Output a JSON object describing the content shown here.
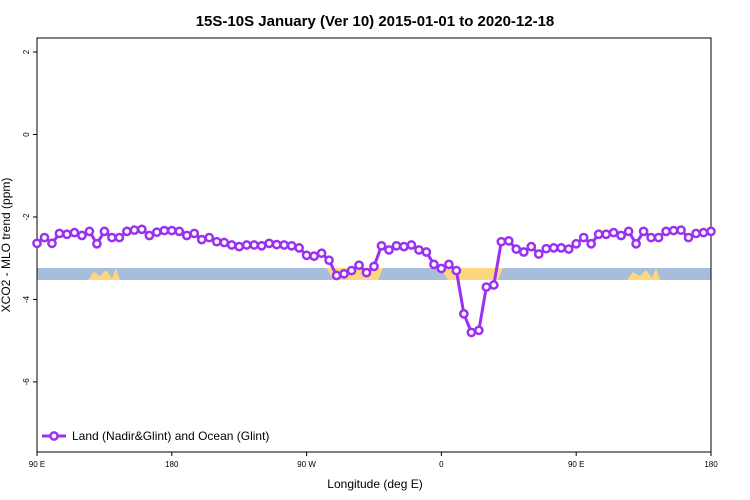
{
  "chart_data": {
    "type": "line",
    "title": "15S-10S January (Ver 10)   2015-01-01 to 2020-12-18",
    "x_label": "Longitude (deg E)",
    "y_label": "XCO2 - MLO trend (ppm)",
    "x": [
      90,
      95,
      100,
      105,
      110,
      115,
      120,
      125,
      130,
      135,
      140,
      145,
      150,
      155,
      160,
      165,
      170,
      175,
      180,
      185,
      190,
      195,
      200,
      205,
      210,
      215,
      220,
      225,
      230,
      235,
      240,
      245,
      250,
      255,
      260,
      265,
      270,
      275,
      280,
      285,
      290,
      295,
      300,
      305,
      310,
      315,
      320,
      325,
      330,
      335,
      340,
      345,
      350,
      355,
      360,
      365,
      370,
      375,
      380,
      385,
      390,
      395,
      400,
      405,
      410,
      415,
      420,
      425,
      430,
      435,
      440,
      445,
      450,
      455,
      460,
      465,
      470,
      475,
      480,
      485,
      490,
      495,
      500,
      505,
      510,
      515,
      520,
      525,
      530,
      535,
      540
    ],
    "series": [
      {
        "name": "Land (Nadir&Glint) and Ocean (Glint)",
        "color": "#9b30f0",
        "values": [
          -2.64,
          -2.5,
          -2.64,
          -2.4,
          -2.42,
          -2.38,
          -2.45,
          -2.35,
          -2.65,
          -2.35,
          -2.5,
          -2.5,
          -2.35,
          -2.32,
          -2.3,
          -2.45,
          -2.37,
          -2.33,
          -2.33,
          -2.35,
          -2.45,
          -2.4,
          -2.55,
          -2.5,
          -2.6,
          -2.62,
          -2.68,
          -2.72,
          -2.68,
          -2.68,
          -2.7,
          -2.64,
          -2.67,
          -2.68,
          -2.7,
          -2.75,
          -2.93,
          -2.95,
          -2.88,
          -3.05,
          -3.42,
          -3.38,
          -3.3,
          -3.17,
          -3.35,
          -3.2,
          -2.7,
          -2.8,
          -2.7,
          -2.72,
          -2.68,
          -2.8,
          -2.85,
          -3.15,
          -3.25,
          -3.15,
          -3.3,
          -4.35,
          -4.8,
          -4.75,
          -3.7,
          -3.65,
          -2.6,
          -2.58,
          -2.78,
          -2.85,
          -2.72,
          -2.9,
          -2.77,
          -2.75,
          -2.75,
          -2.78,
          -2.65,
          -2.5,
          -2.65,
          -2.42,
          -2.42,
          -2.38,
          -2.45,
          -2.35,
          -2.65,
          -2.35,
          -2.5,
          -2.5,
          -2.35,
          -2.33,
          -2.32,
          -2.5,
          -2.4,
          -2.38,
          -2.35
        ]
      }
    ],
    "xlim": [
      90,
      540
    ],
    "xticks": [
      {
        "value": 90,
        "label": "90 E"
      },
      180,
      {
        "value": 270,
        "label": "90 W"
      },
      {
        "value": 360,
        "label": "0"
      },
      {
        "value": 450,
        "label": "90 E"
      },
      {
        "value": 540,
        "label": "180"
      }
    ],
    "ylim": [
      -7.7,
      2.34
    ],
    "yticks": [
      2,
      0,
      -2,
      -4,
      -6
    ],
    "legend": "bottom-left"
  }
}
